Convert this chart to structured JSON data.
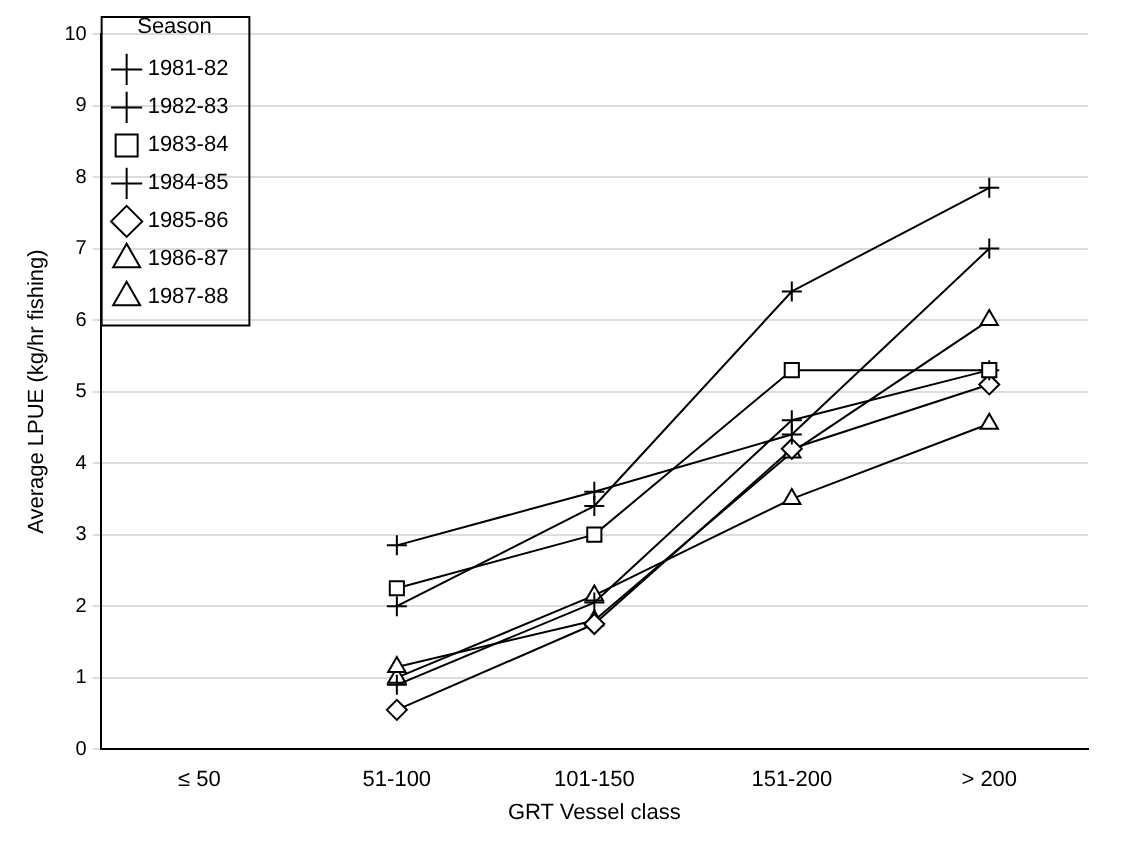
{
  "chart_data": {
    "type": "line",
    "xlabel": "GRT Vessel class",
    "ylabel": "Average LPUE (kg/hr fishing)",
    "legend_title": "Season",
    "legend": "top left",
    "grid": "y",
    "ylim": [
      0,
      10
    ],
    "yticks": [
      0,
      1,
      2,
      3,
      4,
      5,
      6,
      7,
      8,
      9,
      10
    ],
    "categories": [
      "≤ 50",
      "51-100",
      "101-150",
      "151-200",
      "> 200"
    ],
    "series": [
      {
        "name": "1981-82",
        "color": "#000000",
        "marker": "cross",
        "values": [
          null,
          2.85,
          3.6,
          4.4,
          7.0
        ]
      },
      {
        "name": "1982-83",
        "color": "#000000",
        "marker": "cross",
        "values": [
          null,
          2.0,
          3.4,
          6.4,
          7.85
        ]
      },
      {
        "name": "1983-84",
        "color": "#000000",
        "marker": "square",
        "values": [
          null,
          2.25,
          3.0,
          5.3,
          5.3
        ]
      },
      {
        "name": "1984-85",
        "color": "#000000",
        "marker": "cross",
        "values": [
          null,
          0.9,
          2.05,
          4.6,
          5.3
        ]
      },
      {
        "name": "1985-86",
        "color": "#000000",
        "marker": "diamond",
        "values": [
          null,
          0.55,
          1.75,
          4.2,
          5.1
        ]
      },
      {
        "name": "1986-87",
        "color": "#000000",
        "marker": "triangle",
        "values": [
          null,
          1.15,
          1.8,
          4.15,
          6.0
        ]
      },
      {
        "name": "1987-88",
        "color": "#000000",
        "marker": "triangle",
        "values": [
          null,
          1.0,
          2.15,
          3.5,
          4.55
        ]
      }
    ]
  }
}
